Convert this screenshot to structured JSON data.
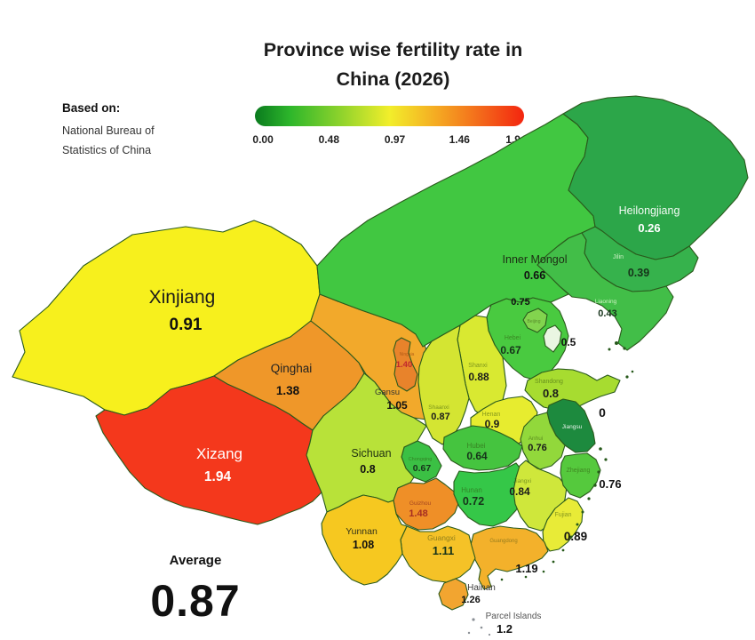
{
  "title": {
    "line1": "Province wise fertility rate in",
    "line2": "China (2026)"
  },
  "source": {
    "heading": "Based on:",
    "line1": "National Bureau of",
    "line2": "Statistics of China"
  },
  "colorbar": {
    "ticks": [
      "0.00",
      "0.48",
      "0.97",
      "1.46",
      "1.94"
    ],
    "gradient_stops": [
      "#0a7a1e",
      "#2db62b",
      "#8fd32c",
      "#f2ee2b",
      "#f5a822",
      "#f3641a",
      "#f3250f"
    ],
    "gradient_positions": [
      0,
      13,
      32,
      50,
      68,
      85,
      100
    ]
  },
  "average": {
    "label": "Average",
    "value": "0.87"
  },
  "map": {
    "border_color": "#2a5a1c",
    "provinces": [
      {
        "id": "xinjiang",
        "name": "Xinjiang",
        "value": "0.91",
        "color": "#F7F01D"
      },
      {
        "id": "xizang",
        "name": "Xizang",
        "value": "1.94",
        "color": "#F4381C"
      },
      {
        "id": "qinghai",
        "name": "Qinghai",
        "value": "1.38",
        "color": "#EF9729"
      },
      {
        "id": "gansu",
        "name": "Gansu",
        "value": "1.05",
        "color": "#F2A92B"
      },
      {
        "id": "inner-mongol",
        "name": "Inner Mongol",
        "value": "0.66",
        "color": "#41C741"
      },
      {
        "id": "heilongjiang",
        "name": "Heilongjiang",
        "value": "0.26",
        "color": "#2CA649"
      },
      {
        "id": "jilin",
        "name": "Jilin",
        "value": "0.39",
        "color": "#36B24C"
      },
      {
        "id": "liaoning",
        "name": "Liaoning",
        "value": "0.43",
        "color": "#42BE48"
      },
      {
        "id": "hebei",
        "name": "Hebei",
        "value": "0.67",
        "color": "#49CA40"
      },
      {
        "id": "beijing",
        "name": "Beijing",
        "value": "0.75",
        "color": "#82D44E"
      },
      {
        "id": "tianjin",
        "name": "",
        "value": "0.5",
        "color": "#EAF6E2"
      },
      {
        "id": "shanxi",
        "name": "Shanxi",
        "value": "0.88",
        "color": "#D9E931"
      },
      {
        "id": "shaanxi",
        "name": "Shaanxi",
        "value": "0.87",
        "color": "#D4E532"
      },
      {
        "id": "ningxia",
        "name": "Ningxia",
        "value": "1.40",
        "color": "#E8832B"
      },
      {
        "id": "shandong",
        "name": "Shandong",
        "value": "0.8",
        "color": "#A7DC30"
      },
      {
        "id": "henan",
        "name": "Henan",
        "value": "0.9",
        "color": "#E7EC2F"
      },
      {
        "id": "jiangsu",
        "name": "Jiangsu",
        "value": "0",
        "color": "#1D8A3E"
      },
      {
        "id": "anhui",
        "name": "Anhui",
        "value": "0.76",
        "color": "#92D83B"
      },
      {
        "id": "hubei",
        "name": "Hubei",
        "value": "0.64",
        "color": "#45C43F"
      },
      {
        "id": "chongqing",
        "name": "Chongqing",
        "value": "0.67",
        "color": "#3BC044"
      },
      {
        "id": "sichuan",
        "name": "Sichuan",
        "value": "0.8",
        "color": "#B8E239"
      },
      {
        "id": "guizhou",
        "name": "Guizhou",
        "value": "1.48",
        "color": "#EF8F27"
      },
      {
        "id": "hunan",
        "name": "Hunan",
        "value": "0.72",
        "color": "#35C748"
      },
      {
        "id": "jiangxi",
        "name": "Jiangxi",
        "value": "0.84",
        "color": "#CFE73B"
      },
      {
        "id": "zhejiang",
        "name": "Zhejiang",
        "value": "0.76",
        "color": "#55C93D"
      },
      {
        "id": "fujian",
        "name": "Fujian",
        "value": "0.89",
        "color": "#E8EB37"
      },
      {
        "id": "guangdong",
        "name": "Guangdong",
        "value": "1.19",
        "color": "#F3B12B"
      },
      {
        "id": "guangxi",
        "name": "Guangxi",
        "value": "1.11",
        "color": "#F5C227"
      },
      {
        "id": "yunnan",
        "name": "Yunnan",
        "value": "1.08",
        "color": "#F6C820"
      },
      {
        "id": "hainan",
        "name": "Hainan",
        "value": "1.26",
        "color": "#F2A530"
      },
      {
        "id": "parcel-islands",
        "name": "Parcel Islands",
        "value": "1.2",
        "color": "#9aa0a6"
      }
    ]
  },
  "chart_data": {
    "type": "heatmap",
    "subtype": "choropleth-map",
    "title": "Province wise fertility rate in China (2026)",
    "source": "Based on: National Bureau of Statistics of China",
    "legend": {
      "min": 0.0,
      "max": 1.94,
      "tick_values": [
        0.0,
        0.48,
        0.97,
        1.46,
        1.94
      ],
      "low_color": "green",
      "high_color": "red"
    },
    "average": 0.87,
    "regions": [
      {
        "name": "Xinjiang",
        "value": 0.91
      },
      {
        "name": "Xizang",
        "value": 1.94
      },
      {
        "name": "Qinghai",
        "value": 1.38
      },
      {
        "name": "Gansu",
        "value": 1.05
      },
      {
        "name": "Ningxia",
        "value": 1.4
      },
      {
        "name": "Inner Mongol",
        "value": 0.66
      },
      {
        "name": "Heilongjiang",
        "value": 0.26
      },
      {
        "name": "Jilin",
        "value": 0.39
      },
      {
        "name": "Liaoning",
        "value": 0.43
      },
      {
        "name": "Beijing",
        "value": 0.75
      },
      {
        "name": "Tianjin",
        "value": 0.5
      },
      {
        "name": "Hebei",
        "value": 0.67
      },
      {
        "name": "Shanxi",
        "value": 0.88
      },
      {
        "name": "Shandong",
        "value": 0.8
      },
      {
        "name": "Henan",
        "value": 0.9
      },
      {
        "name": "Shaanxi",
        "value": 0.87
      },
      {
        "name": "Jiangsu",
        "value": 0
      },
      {
        "name": "Anhui",
        "value": 0.76
      },
      {
        "name": "Hubei",
        "value": 0.64
      },
      {
        "name": "Chongqing",
        "value": 0.67
      },
      {
        "name": "Sichuan",
        "value": 0.8
      },
      {
        "name": "Guizhou",
        "value": 1.48
      },
      {
        "name": "Hunan",
        "value": 0.72
      },
      {
        "name": "Jiangxi",
        "value": 0.84
      },
      {
        "name": "Zhejiang",
        "value": 0.76
      },
      {
        "name": "Fujian",
        "value": 0.89
      },
      {
        "name": "Guangdong",
        "value": 1.19
      },
      {
        "name": "Guangxi",
        "value": 1.11
      },
      {
        "name": "Yunnan",
        "value": 1.08
      },
      {
        "name": "Hainan",
        "value": 1.26
      },
      {
        "name": "Parcel Islands",
        "value": 1.2
      }
    ]
  }
}
